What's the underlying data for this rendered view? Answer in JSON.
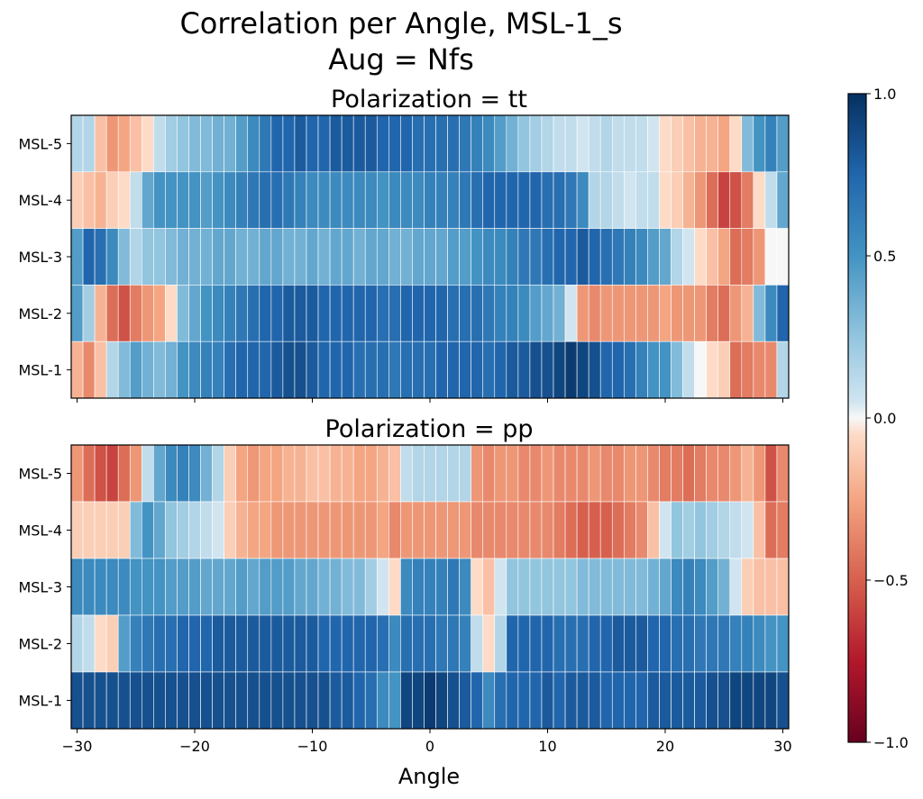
{
  "chart_data": {
    "type": "heatmap",
    "title": "Correlation per Angle, MSL-1_s",
    "subtitle": "Aug = Nfs",
    "xlabel": "Angle",
    "xlim": [
      -30.5,
      30.5
    ],
    "x_ticks": [
      -30,
      -20,
      -10,
      0,
      10,
      20,
      30
    ],
    "x_tick_labels": [
      "−30",
      "−20",
      "−10",
      "0",
      "10",
      "20",
      "30"
    ],
    "x": [
      -30,
      -29,
      -28,
      -27,
      -26,
      -25,
      -24,
      -23,
      -22,
      -21,
      -20,
      -19,
      -18,
      -17,
      -16,
      -15,
      -14,
      -13,
      -12,
      -11,
      -10,
      -9,
      -8,
      -7,
      -6,
      -5,
      -4,
      -3,
      -2,
      -1,
      0,
      1,
      2,
      3,
      4,
      5,
      6,
      7,
      8,
      9,
      10,
      11,
      12,
      13,
      14,
      15,
      16,
      17,
      18,
      19,
      20,
      21,
      22,
      23,
      24,
      25,
      26,
      27,
      28,
      29,
      30
    ],
    "rows": [
      "MSL-5",
      "MSL-4",
      "MSL-3",
      "MSL-2",
      "MSL-1"
    ],
    "colorscale": "RdBu",
    "colorbar": {
      "range": [
        -1.0,
        1.0
      ],
      "ticks": [
        1.0,
        0.5,
        0.0,
        -0.5,
        -1.0
      ],
      "tick_labels": [
        "1.0",
        "0.5",
        "0.0",
        "−0.5",
        "−1.0"
      ]
    },
    "panels": [
      {
        "title": "Polarization = tt",
        "values": {
          "MSL-5": [
            0.15,
            0.15,
            -0.15,
            -0.3,
            -0.25,
            -0.15,
            -0.05,
            0.1,
            0.2,
            0.25,
            0.3,
            0.3,
            0.35,
            0.35,
            0.45,
            0.55,
            0.65,
            0.75,
            0.75,
            0.8,
            0.75,
            0.75,
            0.8,
            0.8,
            0.8,
            0.8,
            0.75,
            0.75,
            0.75,
            0.7,
            0.7,
            0.7,
            0.7,
            0.65,
            0.6,
            0.55,
            0.45,
            0.35,
            0.25,
            0.2,
            0.15,
            0.1,
            0.1,
            0.05,
            0.1,
            0.15,
            0.1,
            0.1,
            0.1,
            0.05,
            -0.05,
            -0.1,
            -0.15,
            -0.2,
            -0.2,
            -0.25,
            -0.05,
            0.3,
            0.5,
            0.6,
            0.45
          ],
          "MSL-4": [
            -0.1,
            -0.15,
            -0.2,
            -0.1,
            -0.05,
            0.1,
            0.4,
            0.5,
            0.5,
            0.5,
            0.5,
            0.45,
            0.5,
            0.55,
            0.6,
            0.65,
            0.7,
            0.7,
            0.65,
            0.6,
            0.55,
            0.55,
            0.55,
            0.55,
            0.55,
            0.55,
            0.5,
            0.55,
            0.55,
            0.55,
            0.6,
            0.6,
            0.6,
            0.65,
            0.7,
            0.75,
            0.75,
            0.75,
            0.75,
            0.75,
            0.7,
            0.7,
            0.65,
            0.55,
            0.15,
            0.15,
            0.1,
            0.05,
            0.1,
            0.1,
            -0.05,
            -0.1,
            -0.2,
            -0.3,
            -0.45,
            -0.6,
            -0.55,
            -0.4,
            -0.05,
            0.1,
            0.4
          ],
          "MSL-3": [
            0.45,
            0.75,
            0.7,
            0.55,
            0.3,
            0.15,
            0.25,
            0.25,
            0.3,
            0.35,
            0.35,
            0.35,
            0.4,
            0.4,
            0.35,
            0.35,
            0.4,
            0.4,
            0.35,
            0.35,
            0.4,
            0.35,
            0.4,
            0.4,
            0.35,
            0.4,
            0.4,
            0.35,
            0.35,
            0.4,
            0.4,
            0.4,
            0.45,
            0.45,
            0.5,
            0.55,
            0.55,
            0.6,
            0.65,
            0.65,
            0.7,
            0.75,
            0.75,
            0.8,
            0.75,
            0.7,
            0.65,
            0.6,
            0.55,
            0.45,
            0.4,
            0.15,
            0.05,
            -0.05,
            -0.15,
            -0.25,
            -0.45,
            -0.4,
            -0.3,
            0.0,
            0.0
          ],
          "MSL-2": [
            0.45,
            0.2,
            -0.2,
            -0.45,
            -0.55,
            -0.4,
            -0.3,
            -0.25,
            -0.05,
            0.3,
            0.4,
            0.5,
            0.55,
            0.6,
            0.65,
            0.7,
            0.75,
            0.75,
            0.8,
            0.8,
            0.8,
            0.75,
            0.75,
            0.75,
            0.75,
            0.75,
            0.7,
            0.7,
            0.75,
            0.75,
            0.75,
            0.75,
            0.7,
            0.7,
            0.7,
            0.65,
            0.6,
            0.6,
            0.55,
            0.45,
            0.4,
            0.35,
            0.05,
            -0.3,
            -0.35,
            -0.3,
            -0.3,
            -0.3,
            -0.3,
            -0.3,
            -0.25,
            -0.3,
            -0.3,
            -0.3,
            -0.4,
            -0.45,
            -0.3,
            -0.2,
            0.3,
            0.55,
            0.75
          ],
          "MSL-1": [
            -0.2,
            -0.35,
            -0.15,
            0.15,
            0.3,
            0.45,
            0.35,
            0.3,
            0.35,
            0.5,
            0.55,
            0.6,
            0.6,
            0.7,
            0.75,
            0.75,
            0.75,
            0.8,
            0.85,
            0.85,
            0.8,
            0.75,
            0.75,
            0.75,
            0.7,
            0.7,
            0.7,
            0.65,
            0.7,
            0.7,
            0.7,
            0.75,
            0.75,
            0.75,
            0.75,
            0.7,
            0.75,
            0.8,
            0.8,
            0.85,
            0.85,
            0.9,
            0.95,
            0.9,
            0.85,
            0.75,
            0.75,
            0.7,
            0.6,
            0.5,
            0.5,
            0.3,
            0.1,
            0.0,
            -0.05,
            -0.1,
            -0.45,
            -0.4,
            -0.35,
            -0.35,
            0.15
          ]
        }
      },
      {
        "title": "Polarization = pp",
        "values": {
          "MSL-5": [
            -0.3,
            -0.45,
            -0.55,
            -0.6,
            -0.45,
            -0.3,
            0.1,
            0.4,
            0.55,
            0.6,
            0.55,
            0.35,
            0.15,
            -0.1,
            -0.25,
            -0.3,
            -0.25,
            -0.25,
            -0.2,
            -0.2,
            -0.15,
            -0.15,
            -0.2,
            -0.2,
            -0.25,
            -0.25,
            -0.2,
            -0.15,
            0.1,
            0.15,
            0.15,
            0.15,
            0.15,
            0.15,
            -0.3,
            -0.35,
            -0.3,
            -0.3,
            -0.35,
            -0.35,
            -0.3,
            -0.35,
            -0.35,
            -0.35,
            -0.3,
            -0.35,
            -0.35,
            -0.3,
            -0.3,
            -0.35,
            -0.4,
            -0.4,
            -0.45,
            -0.4,
            -0.35,
            -0.35,
            -0.3,
            -0.2,
            -0.3,
            -0.55,
            -0.35
          ],
          "MSL-4": [
            -0.1,
            -0.1,
            -0.1,
            -0.1,
            -0.1,
            0.3,
            0.5,
            0.4,
            0.25,
            0.2,
            0.15,
            0.1,
            0.05,
            -0.1,
            -0.2,
            -0.25,
            -0.25,
            -0.3,
            -0.3,
            -0.3,
            -0.3,
            -0.3,
            -0.3,
            -0.3,
            -0.3,
            -0.3,
            -0.25,
            -0.35,
            -0.3,
            -0.3,
            -0.3,
            -0.3,
            -0.3,
            -0.3,
            -0.35,
            -0.35,
            -0.35,
            -0.35,
            -0.35,
            -0.35,
            -0.35,
            -0.4,
            -0.45,
            -0.5,
            -0.5,
            -0.5,
            -0.45,
            -0.4,
            -0.35,
            -0.15,
            0.05,
            0.25,
            0.2,
            0.25,
            0.2,
            0.15,
            0.1,
            0.05,
            -0.15,
            -0.45,
            -0.4
          ],
          "MSL-3": [
            0.55,
            0.55,
            0.55,
            0.55,
            0.55,
            0.5,
            0.5,
            0.5,
            0.45,
            0.45,
            0.45,
            0.4,
            0.4,
            0.4,
            0.45,
            0.4,
            0.45,
            0.45,
            0.45,
            0.4,
            0.4,
            0.35,
            0.35,
            0.3,
            0.3,
            0.2,
            0.05,
            -0.05,
            0.55,
            0.6,
            0.6,
            0.6,
            0.65,
            0.55,
            -0.05,
            -0.15,
            0.05,
            0.25,
            0.25,
            0.25,
            0.25,
            0.25,
            0.25,
            0.3,
            0.3,
            0.3,
            0.3,
            0.3,
            0.3,
            0.35,
            0.4,
            0.55,
            0.6,
            0.55,
            0.45,
            0.35,
            0.05,
            -0.1,
            -0.15,
            -0.15,
            -0.15
          ],
          "MSL-2": [
            0.15,
            0.1,
            -0.05,
            -0.1,
            0.45,
            0.6,
            0.65,
            0.7,
            0.7,
            0.75,
            0.75,
            0.75,
            0.8,
            0.8,
            0.8,
            0.8,
            0.8,
            0.8,
            0.8,
            0.8,
            0.8,
            0.75,
            0.75,
            0.75,
            0.75,
            0.75,
            0.7,
            0.55,
            0.7,
            0.7,
            0.7,
            0.65,
            0.65,
            0.6,
            0.1,
            -0.05,
            0.15,
            0.75,
            0.75,
            0.75,
            0.75,
            0.7,
            0.7,
            0.7,
            0.75,
            0.75,
            0.8,
            0.8,
            0.8,
            0.75,
            0.75,
            0.7,
            0.7,
            0.65,
            0.65,
            0.65,
            0.6,
            0.6,
            0.55,
            0.5,
            0.5
          ],
          "MSL-1": [
            0.85,
            0.85,
            0.85,
            0.85,
            0.85,
            0.85,
            0.85,
            0.85,
            0.85,
            0.85,
            0.85,
            0.85,
            0.85,
            0.85,
            0.85,
            0.85,
            0.85,
            0.85,
            0.85,
            0.85,
            0.85,
            0.85,
            0.8,
            0.8,
            0.75,
            0.7,
            0.55,
            0.5,
            0.9,
            0.9,
            0.95,
            0.9,
            0.85,
            0.8,
            0.75,
            0.55,
            0.7,
            0.75,
            0.75,
            0.75,
            0.8,
            0.75,
            0.8,
            0.8,
            0.8,
            0.75,
            0.75,
            0.75,
            0.75,
            0.8,
            0.8,
            0.8,
            0.8,
            0.8,
            0.85,
            0.85,
            0.9,
            0.9,
            0.9,
            0.9,
            0.85
          ]
        }
      }
    ]
  }
}
